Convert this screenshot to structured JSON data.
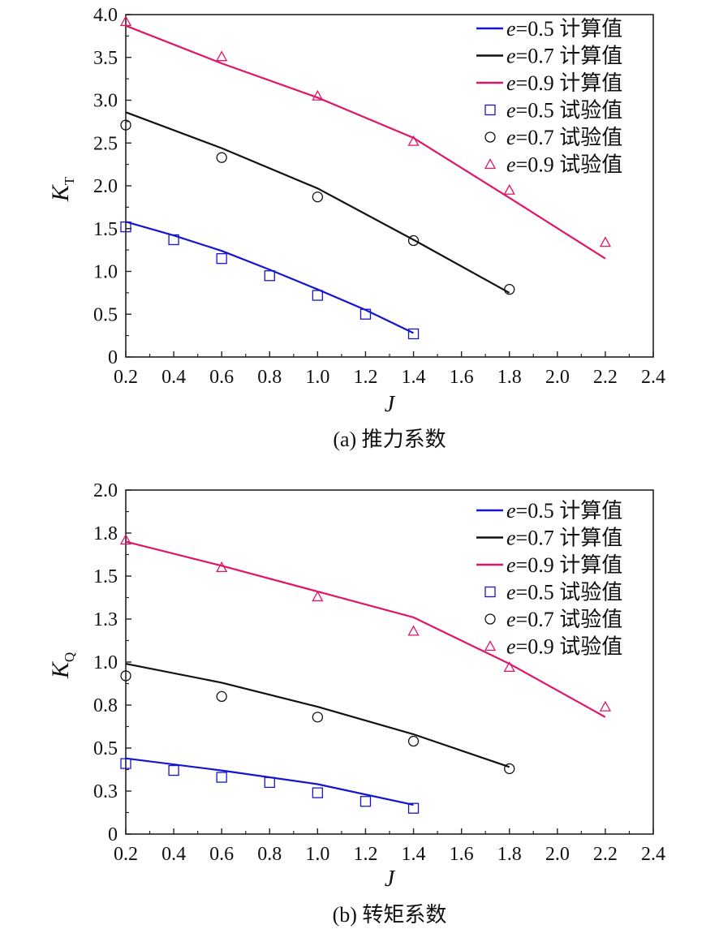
{
  "chart_data": [
    {
      "type": "line",
      "caption": "(a) 推力系数",
      "xlabel": "J",
      "ylabel": {
        "main": "K",
        "sub": "T"
      },
      "xlim": [
        0.2,
        2.4
      ],
      "ylim": [
        0,
        4.0
      ],
      "xticks": [
        "0.2",
        "0.4",
        "0.6",
        "0.8",
        "1.0",
        "1.2",
        "1.4",
        "1.6",
        "1.8",
        "2.0",
        "2.2",
        "2.4"
      ],
      "yticks": [
        "0",
        "0.5",
        "1.0",
        "1.5",
        "2.0",
        "2.5",
        "3.0",
        "3.5",
        "4.0"
      ],
      "grid": false,
      "legend_position": "top-right",
      "series": [
        {
          "name": "e=0.5 计算值",
          "legend_e": "e",
          "legend_rest": "=0.5 计算值",
          "kind": "line",
          "color": "#1515d0",
          "x": [
            0.2,
            0.4,
            0.6,
            0.8,
            1.0,
            1.2,
            1.4
          ],
          "y": [
            1.58,
            1.42,
            1.24,
            1.02,
            0.79,
            0.55,
            0.28
          ]
        },
        {
          "name": "e=0.7 计算值",
          "legend_e": "e",
          "legend_rest": "=0.7 计算值",
          "kind": "line",
          "color": "#111111",
          "x": [
            0.2,
            0.6,
            1.0,
            1.4,
            1.8
          ],
          "y": [
            2.86,
            2.44,
            1.97,
            1.37,
            0.75
          ]
        },
        {
          "name": "e=0.9 计算值",
          "legend_e": "e",
          "legend_rest": "=0.9 计算值",
          "kind": "line",
          "color": "#e0156a",
          "x": [
            0.2,
            0.6,
            1.0,
            1.4,
            1.8,
            2.2
          ],
          "y": [
            3.87,
            3.43,
            3.03,
            2.56,
            1.86,
            1.15
          ]
        },
        {
          "name": "e=0.5 试验值",
          "legend_e": "e",
          "legend_rest": "=0.5 试验值",
          "kind": "marker",
          "marker": "square",
          "color": "#1515d0",
          "x": [
            0.2,
            0.4,
            0.6,
            0.8,
            1.0,
            1.2,
            1.4
          ],
          "y": [
            1.52,
            1.37,
            1.15,
            0.95,
            0.72,
            0.5,
            0.27
          ]
        },
        {
          "name": "e=0.7 试验值",
          "legend_e": "e",
          "legend_rest": "=0.7 试验值",
          "kind": "marker",
          "marker": "circle",
          "color": "#111111",
          "x": [
            0.2,
            0.6,
            1.0,
            1.4,
            1.8
          ],
          "y": [
            2.71,
            2.33,
            1.87,
            1.36,
            0.79
          ]
        },
        {
          "name": "e=0.9 试验值",
          "legend_e": "e",
          "legend_rest": "=0.9 试验值",
          "kind": "marker",
          "marker": "triangle",
          "color": "#e0156a",
          "x": [
            0.2,
            0.6,
            1.0,
            1.4,
            1.8,
            2.2
          ],
          "y": [
            3.92,
            3.51,
            3.05,
            2.52,
            1.95,
            1.34
          ]
        }
      ]
    },
    {
      "type": "line",
      "caption": "(b) 转矩系数",
      "xlabel": "J",
      "ylabel": {
        "main": "K",
        "sub": "Q"
      },
      "xlim": [
        0.2,
        2.4
      ],
      "ylim": [
        0,
        2.0
      ],
      "xticks": [
        "0.2",
        "0.4",
        "0.6",
        "0.8",
        "1.0",
        "1.2",
        "1.4",
        "1.6",
        "1.8",
        "2.0",
        "2.2",
        "2.4"
      ],
      "yticks": [
        "0",
        "0.3",
        "0.5",
        "0.8",
        "1.0",
        "1.3",
        "1.5",
        "1.8",
        "2.0"
      ],
      "grid": false,
      "legend_position": "top-right",
      "series": [
        {
          "name": "e=0.5 计算值",
          "legend_e": "e",
          "legend_rest": "=0.5 计算值",
          "kind": "line",
          "color": "#1515d0",
          "x": [
            0.2,
            0.6,
            1.0,
            1.4
          ],
          "y": [
            0.44,
            0.37,
            0.29,
            0.17
          ]
        },
        {
          "name": "e=0.7 计算值",
          "legend_e": "e",
          "legend_rest": "=0.7 计算值",
          "kind": "line",
          "color": "#111111",
          "x": [
            0.2,
            0.6,
            1.0,
            1.4,
            1.8
          ],
          "y": [
            0.99,
            0.88,
            0.74,
            0.58,
            0.39
          ]
        },
        {
          "name": "e=0.9 计算值",
          "legend_e": "e",
          "legend_rest": "=0.9 计算值",
          "kind": "line",
          "color": "#e0156a",
          "x": [
            0.2,
            0.6,
            1.0,
            1.4,
            1.8,
            2.2
          ],
          "y": [
            1.7,
            1.56,
            1.41,
            1.26,
            0.99,
            0.68
          ]
        },
        {
          "name": "e=0.5 试验值",
          "legend_e": "e",
          "legend_rest": "=0.5 试验值",
          "kind": "marker",
          "marker": "square",
          "color": "#1515d0",
          "x": [
            0.2,
            0.4,
            0.6,
            0.8,
            1.0,
            1.2,
            1.4
          ],
          "y": [
            0.41,
            0.37,
            0.33,
            0.3,
            0.24,
            0.19,
            0.15
          ]
        },
        {
          "name": "e=0.7 试验值",
          "legend_e": "e",
          "legend_rest": "=0.7 试验值",
          "kind": "marker",
          "marker": "circle",
          "color": "#111111",
          "x": [
            0.2,
            0.6,
            1.0,
            1.4,
            1.8
          ],
          "y": [
            0.92,
            0.8,
            0.68,
            0.54,
            0.38
          ]
        },
        {
          "name": "e=0.9 试验值",
          "legend_e": "e",
          "legend_rest": "=0.9 试验值",
          "kind": "marker",
          "marker": "triangle",
          "color": "#e0156a",
          "x": [
            0.2,
            0.6,
            1.0,
            1.4,
            1.8,
            2.2
          ],
          "y": [
            1.71,
            1.55,
            1.38,
            1.18,
            0.97,
            0.74
          ]
        }
      ]
    }
  ]
}
